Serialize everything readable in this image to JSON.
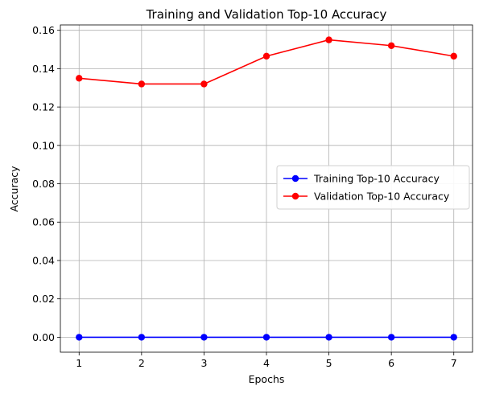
{
  "chart_data": {
    "type": "line",
    "title": "Training and Validation Top-10 Accuracy",
    "xlabel": "Epochs",
    "ylabel": "Accuracy",
    "x": [
      1,
      2,
      3,
      4,
      5,
      6,
      7
    ],
    "xticks": [
      "1",
      "2",
      "3",
      "4",
      "5",
      "6",
      "7"
    ],
    "yticks": [
      "0.00",
      "0.02",
      "0.04",
      "0.06",
      "0.08",
      "0.10",
      "0.12",
      "0.14",
      "0.16"
    ],
    "xlim": [
      0.7,
      7.3
    ],
    "ylim": [
      -0.0078,
      0.1628
    ],
    "grid": true,
    "legend_position": "center-right",
    "series": [
      {
        "name": "Training Top-10 Accuracy",
        "color": "#0000ff",
        "marker": "circle",
        "values": [
          0.0,
          0.0,
          0.0,
          0.0,
          0.0,
          0.0,
          0.0
        ]
      },
      {
        "name": "Validation Top-10 Accuracy",
        "color": "#ff0000",
        "marker": "circle",
        "values": [
          0.135,
          0.132,
          0.132,
          0.1465,
          0.155,
          0.152,
          0.1465
        ]
      }
    ]
  }
}
